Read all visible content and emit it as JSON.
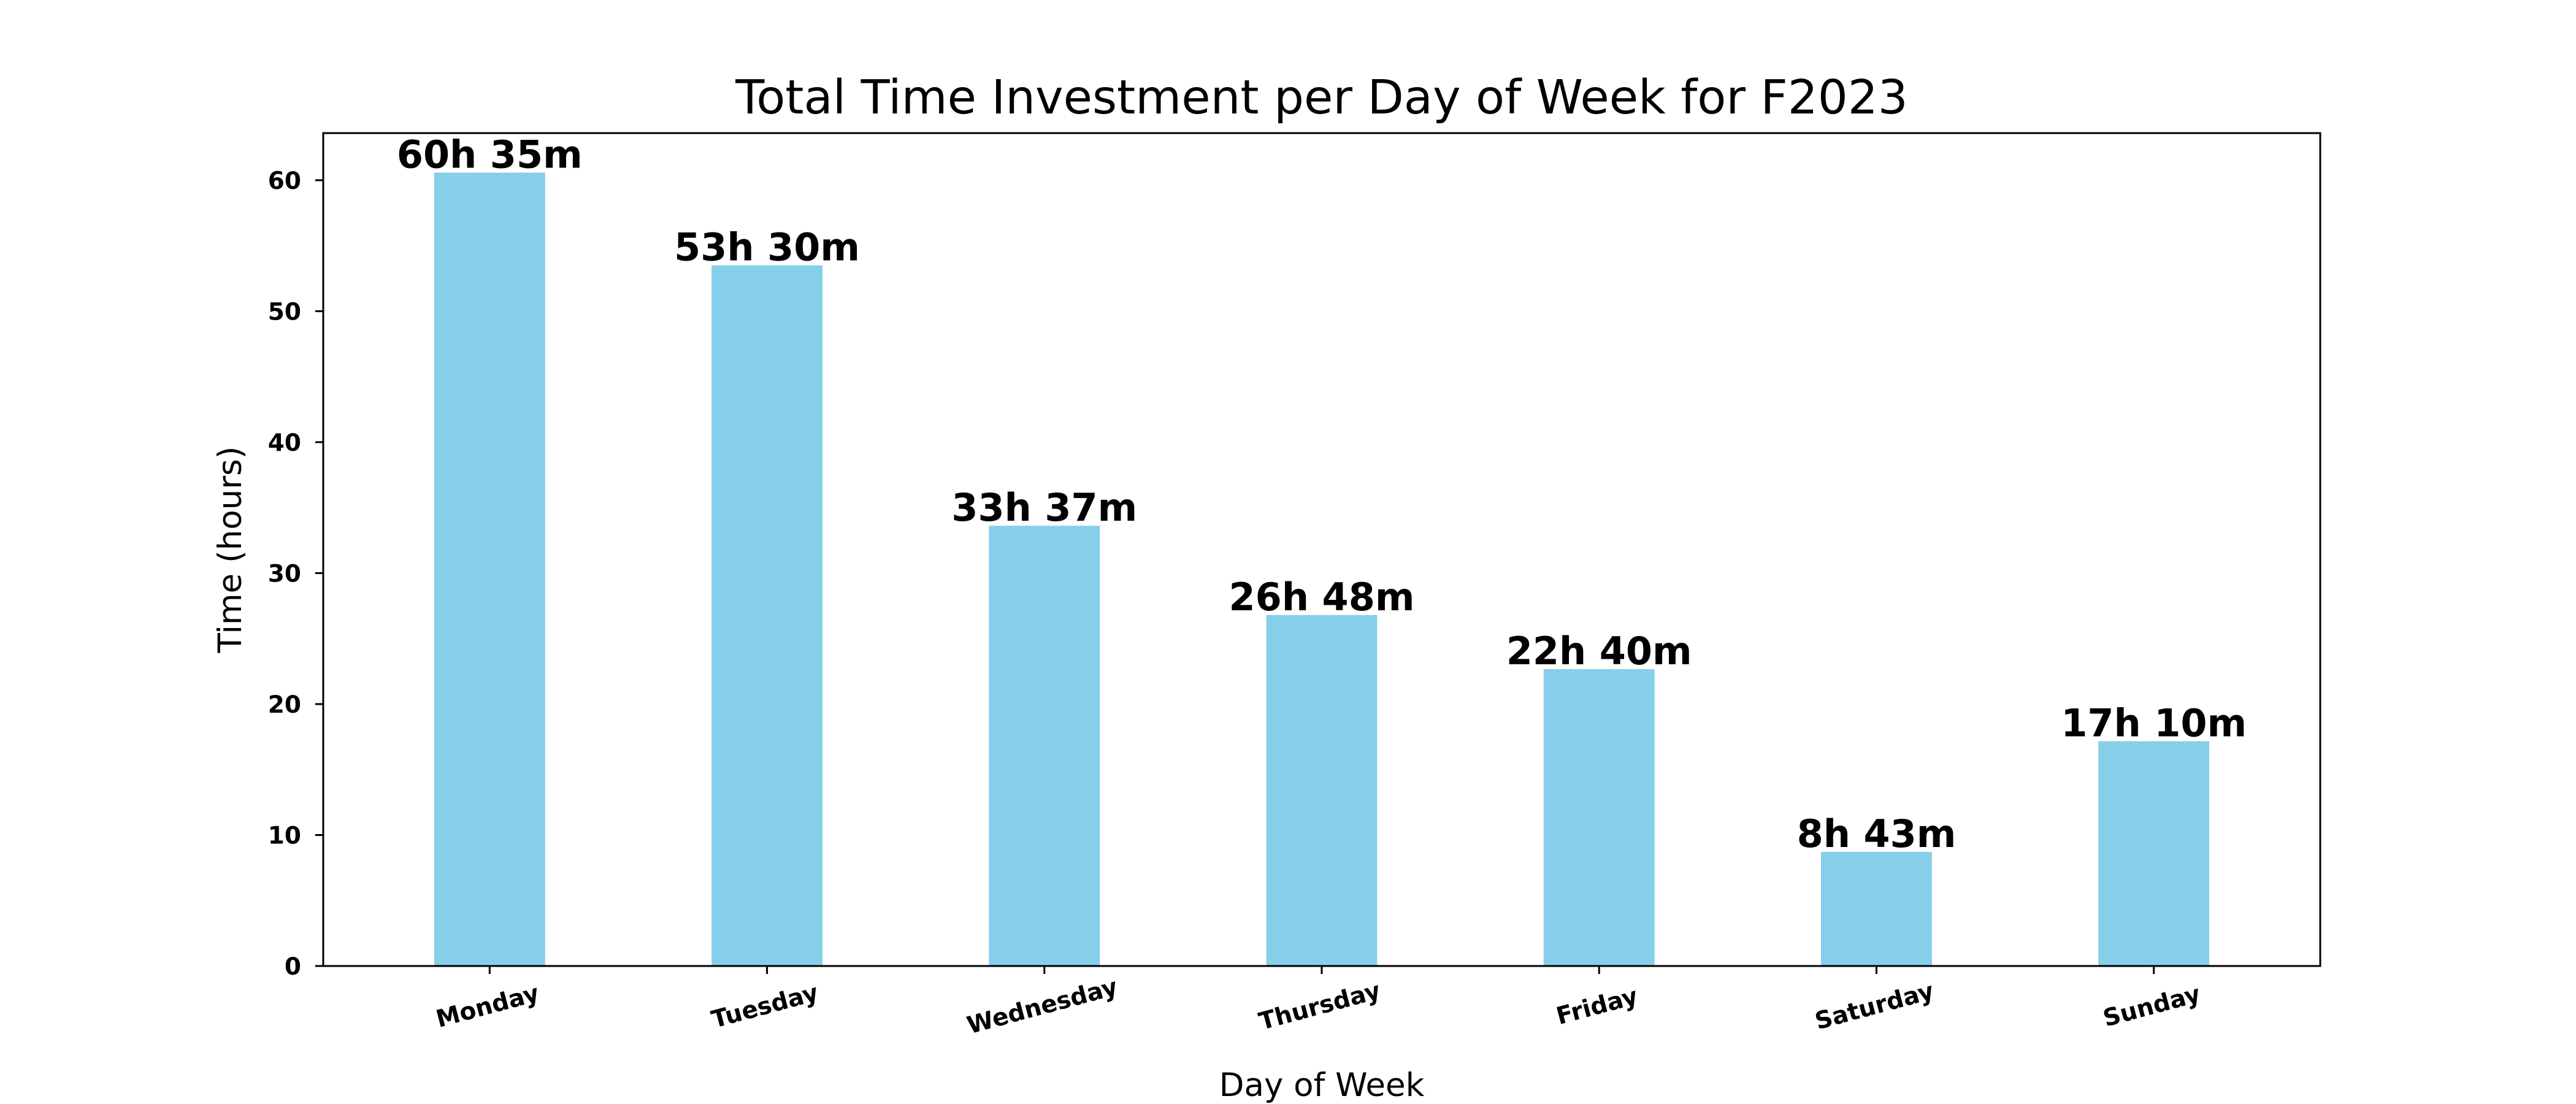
{
  "chart_data": {
    "type": "bar",
    "title": "Total Time Investment per Day of Week for F2023",
    "xlabel": "Day of Week",
    "ylabel": "Time (hours)",
    "categories": [
      "Monday",
      "Tuesday",
      "Wednesday",
      "Thursday",
      "Friday",
      "Saturday",
      "Sunday"
    ],
    "values": [
      60.583,
      53.5,
      33.617,
      26.8,
      22.667,
      8.717,
      17.167
    ],
    "data_labels": [
      "60h 35m",
      "53h 30m",
      "33h 37m",
      "26h 48m",
      "22h 40m",
      "8h 43m",
      "17h 10m"
    ],
    "ylim": [
      0,
      63.6
    ],
    "yticks": [
      0,
      10,
      20,
      30,
      40,
      50,
      60
    ],
    "grid": false,
    "bar_color": "#87CEEB"
  }
}
